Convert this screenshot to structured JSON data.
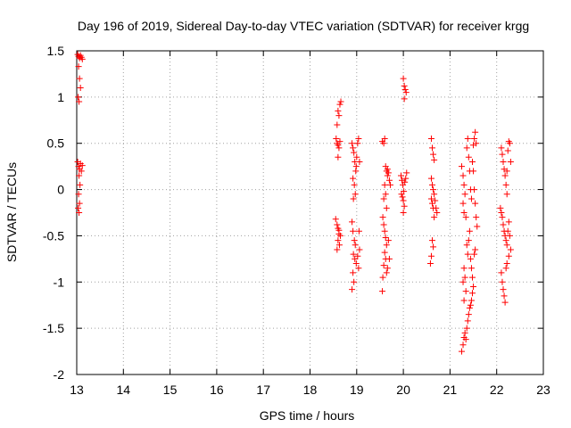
{
  "chart_data": {
    "type": "scatter",
    "title": "Day 196 of 2019, Sidereal Day-to-day VTEC variation (SDTVAR) for receiver krgg",
    "xlabel": "GPS time / hours",
    "ylabel": "SDTVAR / TECUs",
    "xlim": [
      13,
      23
    ],
    "ylim": [
      -2,
      1.5
    ],
    "xticks": [
      13,
      14,
      15,
      16,
      17,
      18,
      19,
      20,
      21,
      22,
      23
    ],
    "yticks": [
      -2,
      -1.5,
      -1,
      -0.5,
      0,
      0.5,
      1,
      1.5
    ],
    "xtick_labels": [
      "13",
      "14",
      "15",
      "16",
      "17",
      "18",
      "19",
      "20",
      "21",
      "22",
      "23"
    ],
    "ytick_labels": [
      "-2",
      "-1.5",
      "-1",
      "-0.5",
      "0",
      "0.5",
      "1",
      "1.5"
    ],
    "grid": true,
    "marker": "+",
    "series": [
      {
        "name": "SDTVAR",
        "color": "#ff0000",
        "points": [
          [
            13.02,
            1.46
          ],
          [
            13.04,
            1.44
          ],
          [
            13.06,
            1.42
          ],
          [
            13.08,
            1.45
          ],
          [
            13.1,
            1.43
          ],
          [
            13.12,
            1.41
          ],
          [
            13.04,
            1.33
          ],
          [
            13.06,
            1.2
          ],
          [
            13.08,
            1.1
          ],
          [
            13.03,
            1.0
          ],
          [
            13.05,
            0.95
          ],
          [
            13.02,
            0.3
          ],
          [
            13.04,
            0.25
          ],
          [
            13.06,
            0.22
          ],
          [
            13.08,
            0.28
          ],
          [
            13.1,
            0.2
          ],
          [
            13.12,
            0.26
          ],
          [
            13.05,
            0.15
          ],
          [
            13.07,
            0.05
          ],
          [
            13.04,
            -0.05
          ],
          [
            13.06,
            -0.15
          ],
          [
            13.03,
            -0.2
          ],
          [
            13.05,
            -0.25
          ],
          [
            18.55,
            -0.32
          ],
          [
            18.58,
            -0.38
          ],
          [
            18.6,
            -0.42
          ],
          [
            18.62,
            -0.48
          ],
          [
            18.6,
            -0.55
          ],
          [
            18.63,
            -0.6
          ],
          [
            18.58,
            -0.65
          ],
          [
            18.65,
            -0.5
          ],
          [
            18.62,
            -0.44
          ],
          [
            18.56,
            0.55
          ],
          [
            18.58,
            0.5
          ],
          [
            18.6,
            0.48
          ],
          [
            18.62,
            0.45
          ],
          [
            18.64,
            0.52
          ],
          [
            18.6,
            0.35
          ],
          [
            18.58,
            0.7
          ],
          [
            18.62,
            0.8
          ],
          [
            18.6,
            0.85
          ],
          [
            18.64,
            0.92
          ],
          [
            18.66,
            0.95
          ],
          [
            18.9,
            0.5
          ],
          [
            18.92,
            0.45
          ],
          [
            18.94,
            0.4
          ],
          [
            18.96,
            0.3
          ],
          [
            18.98,
            0.2
          ],
          [
            18.92,
            0.12
          ],
          [
            18.95,
            0.05
          ],
          [
            18.97,
            -0.05
          ],
          [
            18.93,
            -0.1
          ],
          [
            18.99,
            0.25
          ],
          [
            19.0,
            0.35
          ],
          [
            19.02,
            0.5
          ],
          [
            19.04,
            0.55
          ],
          [
            19.06,
            0.3
          ],
          [
            18.9,
            -0.35
          ],
          [
            18.92,
            -0.45
          ],
          [
            18.95,
            -0.55
          ],
          [
            18.97,
            -0.6
          ],
          [
            18.93,
            -0.7
          ],
          [
            18.96,
            -0.75
          ],
          [
            18.99,
            -0.8
          ],
          [
            18.92,
            -0.9
          ],
          [
            18.94,
            -1.0
          ],
          [
            18.9,
            -1.08
          ],
          [
            19.02,
            -0.72
          ],
          [
            19.04,
            -0.85
          ],
          [
            19.06,
            -0.65
          ],
          [
            19.05,
            -0.45
          ],
          [
            19.55,
            0.52
          ],
          [
            19.58,
            0.5
          ],
          [
            19.6,
            0.55
          ],
          [
            19.62,
            0.25
          ],
          [
            19.64,
            0.2
          ],
          [
            19.66,
            0.15
          ],
          [
            19.6,
            0.05
          ],
          [
            19.62,
            -0.05
          ],
          [
            19.58,
            -0.1
          ],
          [
            19.64,
            -0.2
          ],
          [
            19.66,
            0.22
          ],
          [
            19.68,
            0.18
          ],
          [
            19.7,
            0.1
          ],
          [
            19.72,
            0.05
          ],
          [
            19.56,
            -0.3
          ],
          [
            19.58,
            -0.38
          ],
          [
            19.6,
            -0.45
          ],
          [
            19.62,
            -0.52
          ],
          [
            19.64,
            -0.6
          ],
          [
            19.6,
            -0.68
          ],
          [
            19.62,
            -0.75
          ],
          [
            19.58,
            -0.82
          ],
          [
            19.64,
            -0.9
          ],
          [
            19.56,
            -0.95
          ],
          [
            19.55,
            -1.1
          ],
          [
            19.68,
            -0.55
          ],
          [
            19.7,
            -0.75
          ],
          [
            19.66,
            -0.85
          ],
          [
            20.0,
            1.2
          ],
          [
            20.02,
            1.12
          ],
          [
            20.04,
            1.08
          ],
          [
            20.06,
            1.05
          ],
          [
            20.02,
            0.98
          ],
          [
            19.95,
            0.15
          ],
          [
            19.97,
            0.1
          ],
          [
            19.99,
            0.05
          ],
          [
            20.01,
            -0.02
          ],
          [
            20.03,
            0.08
          ],
          [
            20.05,
            0.12
          ],
          [
            20.07,
            0.18
          ],
          [
            19.98,
            -0.08
          ],
          [
            20.0,
            -0.12
          ],
          [
            20.02,
            -0.18
          ],
          [
            20.0,
            -0.25
          ],
          [
            19.96,
            -0.05
          ],
          [
            20.6,
            0.55
          ],
          [
            20.62,
            0.45
          ],
          [
            20.64,
            0.38
          ],
          [
            20.66,
            0.32
          ],
          [
            20.6,
            0.12
          ],
          [
            20.62,
            0.05
          ],
          [
            20.64,
            0.0
          ],
          [
            20.66,
            -0.05
          ],
          [
            20.6,
            -0.1
          ],
          [
            20.62,
            -0.15
          ],
          [
            20.64,
            -0.2
          ],
          [
            20.68,
            -0.12
          ],
          [
            20.7,
            -0.2
          ],
          [
            20.72,
            -0.25
          ],
          [
            20.66,
            -0.3
          ],
          [
            20.62,
            -0.55
          ],
          [
            20.64,
            -0.62
          ],
          [
            20.6,
            -0.72
          ],
          [
            20.58,
            -0.8
          ],
          [
            21.25,
            0.25
          ],
          [
            21.28,
            0.15
          ],
          [
            21.3,
            0.05
          ],
          [
            21.32,
            -0.05
          ],
          [
            21.28,
            -0.15
          ],
          [
            21.3,
            -0.25
          ],
          [
            21.34,
            -0.3
          ],
          [
            21.36,
            0.45
          ],
          [
            21.38,
            0.55
          ],
          [
            21.4,
            0.35
          ],
          [
            21.42,
            0.2
          ],
          [
            21.44,
            0.0
          ],
          [
            21.46,
            -0.1
          ],
          [
            21.48,
            0.3
          ],
          [
            21.5,
            0.48
          ],
          [
            21.52,
            0.55
          ],
          [
            21.54,
            0.62
          ],
          [
            21.56,
            0.5
          ],
          [
            21.5,
            0.2
          ],
          [
            21.52,
            0.0
          ],
          [
            21.54,
            -0.15
          ],
          [
            21.56,
            -0.3
          ],
          [
            21.58,
            -0.4
          ],
          [
            21.3,
            -0.85
          ],
          [
            21.32,
            -0.95
          ],
          [
            21.28,
            -1.0
          ],
          [
            21.34,
            -1.1
          ],
          [
            21.3,
            -1.2
          ],
          [
            21.36,
            -0.6
          ],
          [
            21.38,
            -0.7
          ],
          [
            21.4,
            -0.55
          ],
          [
            21.42,
            -0.45
          ],
          [
            21.44,
            -0.75
          ],
          [
            21.46,
            -0.85
          ],
          [
            21.48,
            -0.95
          ],
          [
            21.5,
            -1.05
          ],
          [
            21.52,
            -0.7
          ],
          [
            21.54,
            -0.65
          ],
          [
            21.25,
            -1.75
          ],
          [
            21.28,
            -1.68
          ],
          [
            21.3,
            -1.6
          ],
          [
            21.32,
            -1.55
          ],
          [
            21.34,
            -1.62
          ],
          [
            21.36,
            -1.5
          ],
          [
            21.38,
            -1.42
          ],
          [
            21.4,
            -1.35
          ],
          [
            21.42,
            -1.28
          ],
          [
            21.44,
            -1.25
          ],
          [
            21.46,
            -1.2
          ],
          [
            21.48,
            -1.12
          ],
          [
            22.1,
            0.45
          ],
          [
            22.12,
            0.38
          ],
          [
            22.14,
            0.3
          ],
          [
            22.16,
            0.22
          ],
          [
            22.18,
            0.15
          ],
          [
            22.2,
            0.05
          ],
          [
            22.22,
            -0.05
          ],
          [
            22.24,
            0.42
          ],
          [
            22.26,
            0.52
          ],
          [
            22.28,
            0.5
          ],
          [
            22.3,
            0.3
          ],
          [
            22.22,
            0.2
          ],
          [
            22.08,
            -0.2
          ],
          [
            22.1,
            -0.25
          ],
          [
            22.12,
            -0.3
          ],
          [
            22.14,
            -0.38
          ],
          [
            22.16,
            -0.45
          ],
          [
            22.18,
            -0.5
          ],
          [
            22.2,
            -0.55
          ],
          [
            22.22,
            -0.6
          ],
          [
            22.24,
            -0.45
          ],
          [
            22.26,
            -0.35
          ],
          [
            22.28,
            -0.5
          ],
          [
            22.3,
            -0.65
          ],
          [
            22.26,
            -0.72
          ],
          [
            22.1,
            -0.9
          ],
          [
            22.12,
            -1.0
          ],
          [
            22.14,
            -1.08
          ],
          [
            22.16,
            -1.15
          ],
          [
            22.18,
            -1.22
          ],
          [
            22.2,
            -0.85
          ],
          [
            22.22,
            -0.8
          ]
        ]
      }
    ]
  }
}
